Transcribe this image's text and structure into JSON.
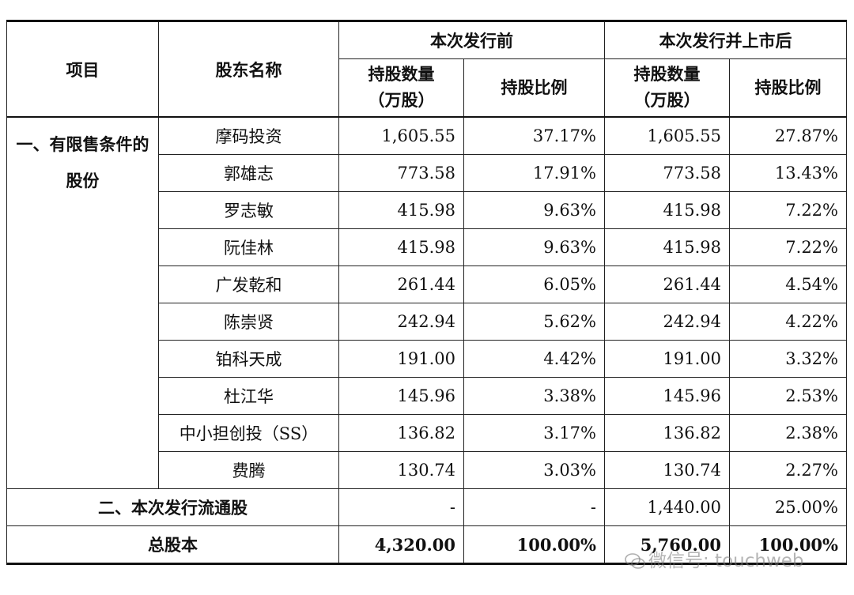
{
  "header": {
    "item": "项目",
    "shareholder": "股东名称",
    "before": "本次发行前",
    "after": "本次发行并上市后",
    "qty_line1": "持股数量",
    "qty_line2": "（万股）",
    "ratio": "持股比例"
  },
  "category1": "一、有限售条件的股份",
  "rows": [
    {
      "name": "摩码投资",
      "before_qty": "1,605.55",
      "before_pct": "37.17%",
      "after_qty": "1,605.55",
      "after_pct": "27.87%"
    },
    {
      "name": "郭雄志",
      "before_qty": "773.58",
      "before_pct": "17.91%",
      "after_qty": "773.58",
      "after_pct": "13.43%"
    },
    {
      "name": "罗志敏",
      "before_qty": "415.98",
      "before_pct": "9.63%",
      "after_qty": "415.98",
      "after_pct": "7.22%"
    },
    {
      "name": "阮佳林",
      "before_qty": "415.98",
      "before_pct": "9.63%",
      "after_qty": "415.98",
      "after_pct": "7.22%"
    },
    {
      "name": "广发乾和",
      "before_qty": "261.44",
      "before_pct": "6.05%",
      "after_qty": "261.44",
      "after_pct": "4.54%"
    },
    {
      "name": "陈崇贤",
      "before_qty": "242.94",
      "before_pct": "5.62%",
      "after_qty": "242.94",
      "after_pct": "4.22%"
    },
    {
      "name": "铂科天成",
      "before_qty": "191.00",
      "before_pct": "4.42%",
      "after_qty": "191.00",
      "after_pct": "3.32%"
    },
    {
      "name": "杜江华",
      "before_qty": "145.96",
      "before_pct": "3.38%",
      "after_qty": "145.96",
      "after_pct": "2.53%"
    },
    {
      "name": "中小担创投（SS）",
      "before_qty": "136.82",
      "before_pct": "3.17%",
      "after_qty": "136.82",
      "after_pct": "2.38%"
    },
    {
      "name": "费腾",
      "before_qty": "130.74",
      "before_pct": "3.03%",
      "after_qty": "130.74",
      "after_pct": "2.27%"
    }
  ],
  "category2": {
    "label": "二、本次发行流通股",
    "before_qty": "-",
    "before_pct": "-",
    "after_qty": "1,440.00",
    "after_pct": "25.00%"
  },
  "total": {
    "label": "总股本",
    "before_qty": "4,320.00",
    "before_pct": "100.00%",
    "after_qty": "5,760.00",
    "after_pct": "100.00%"
  },
  "watermark": "微信号: touchweb"
}
